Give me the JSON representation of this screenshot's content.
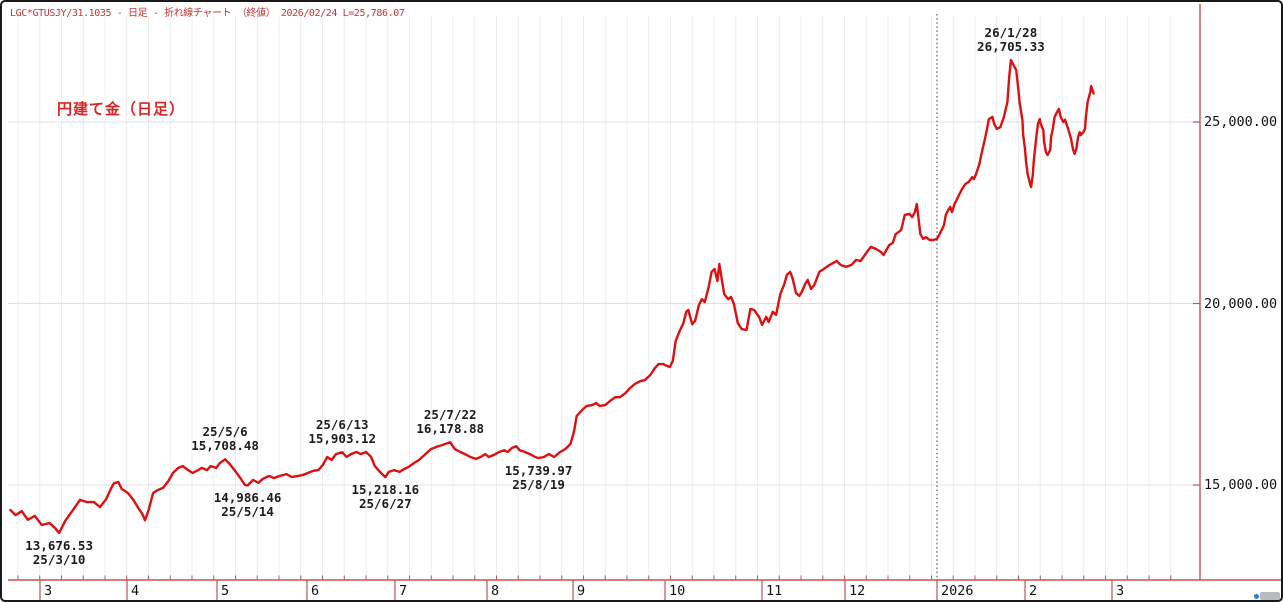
{
  "header": {
    "text": "LGC*GTUSJY/31.1035 - 日足 - 折れ線チャート （終値） 2026/02/24 L=25,786.07"
  },
  "chart_data": {
    "type": "line",
    "title": "円建て金（日足）",
    "instrument": "LGC*GTUSJY/31.1035",
    "period": "日足",
    "chart_style": "折れ線チャート（終値）",
    "last_date": "2026/02/24",
    "last_value": 25786.07,
    "line_color": "#dc1010",
    "axis_color": "#c05353",
    "grid_on": true,
    "x_axis": {
      "tick_labels": [
        "3",
        "4",
        "5",
        "6",
        "7",
        "8",
        "9",
        "10",
        "11",
        "12",
        "2026",
        "2",
        "3"
      ],
      "range_note": "2025/03 - 2026/03 (daily)"
    },
    "y_axis": {
      "tick_values": [
        25000,
        20000,
        15000
      ],
      "tick_labels": [
        "25,000.00",
        "20,000.00",
        "15,000.00"
      ],
      "approx_range": [
        13300,
        27200
      ]
    },
    "t_scale_note": "t = month coordinate: 3..12 = Mar-Dec 2025, 13 = Jan 2026, 14 = Feb 2026, 15 = Mar 2026; fraction = position within month",
    "vline": {
      "t": 13.0,
      "meaning": "year boundary 2026"
    },
    "annotations": [
      {
        "line1": "26/1/28",
        "line2": "26,705.33",
        "t": 13.84,
        "v": 26705.33,
        "side": "above"
      },
      {
        "line1": "25/5/6",
        "line2": "15,708.48",
        "t": 5.09,
        "v": 15708.48,
        "side": "above"
      },
      {
        "line1": "14,986.46",
        "line2": "25/5/14",
        "t": 5.34,
        "v": 14986.46,
        "side": "below"
      },
      {
        "line1": "25/6/13",
        "line2": "15,903.12",
        "t": 6.4,
        "v": 15903.12,
        "side": "above"
      },
      {
        "line1": "15,218.16",
        "line2": "25/6/27",
        "t": 6.89,
        "v": 15218.16,
        "side": "below"
      },
      {
        "line1": "25/7/22",
        "line2": "16,178.88",
        "t": 7.6,
        "v": 16178.88,
        "side": "above"
      },
      {
        "line1": "15,739.97",
        "line2": "25/8/19",
        "t": 8.6,
        "v": 15739.97,
        "side": "below"
      },
      {
        "line1": "13,676.53",
        "line2": "25/3/10",
        "t": 3.22,
        "v": 13676.53,
        "side": "below"
      }
    ],
    "series": [
      {
        "name": "終値",
        "points": [
          [
            2.66,
            14310
          ],
          [
            2.72,
            14170
          ],
          [
            2.79,
            14280
          ],
          [
            2.86,
            14040
          ],
          [
            2.94,
            14150
          ],
          [
            3.02,
            13900
          ],
          [
            3.11,
            13950
          ],
          [
            3.17,
            13820
          ],
          [
            3.22,
            13676.53
          ],
          [
            3.29,
            14010
          ],
          [
            3.37,
            14280
          ],
          [
            3.46,
            14590
          ],
          [
            3.54,
            14530
          ],
          [
            3.62,
            14530
          ],
          [
            3.69,
            14390
          ],
          [
            3.76,
            14610
          ],
          [
            3.82,
            14920
          ],
          [
            3.85,
            15050
          ],
          [
            3.9,
            15080
          ],
          [
            3.94,
            14890
          ],
          [
            4.01,
            14780
          ],
          [
            4.07,
            14590
          ],
          [
            4.12,
            14390
          ],
          [
            4.17,
            14200
          ],
          [
            4.2,
            14030
          ],
          [
            4.24,
            14310
          ],
          [
            4.29,
            14780
          ],
          [
            4.34,
            14860
          ],
          [
            4.4,
            14920
          ],
          [
            4.46,
            15110
          ],
          [
            4.51,
            15330
          ],
          [
            4.57,
            15470
          ],
          [
            4.62,
            15520
          ],
          [
            4.68,
            15410
          ],
          [
            4.73,
            15330
          ],
          [
            4.79,
            15410
          ],
          [
            4.83,
            15470
          ],
          [
            4.89,
            15410
          ],
          [
            4.93,
            15520
          ],
          [
            4.99,
            15470
          ],
          [
            5.03,
            15600
          ],
          [
            5.09,
            15708.48
          ],
          [
            5.14,
            15580
          ],
          [
            5.2,
            15390
          ],
          [
            5.26,
            15190
          ],
          [
            5.31,
            15000
          ],
          [
            5.34,
            14986.46
          ],
          [
            5.4,
            15140
          ],
          [
            5.46,
            15060
          ],
          [
            5.51,
            15170
          ],
          [
            5.58,
            15250
          ],
          [
            5.63,
            15190
          ],
          [
            5.7,
            15250
          ],
          [
            5.77,
            15300
          ],
          [
            5.83,
            15220
          ],
          [
            5.9,
            15250
          ],
          [
            5.96,
            15280
          ],
          [
            6.01,
            15330
          ],
          [
            6.07,
            15390
          ],
          [
            6.13,
            15410
          ],
          [
            6.18,
            15550
          ],
          [
            6.23,
            15770
          ],
          [
            6.28,
            15690
          ],
          [
            6.33,
            15850
          ],
          [
            6.4,
            15903.12
          ],
          [
            6.45,
            15770
          ],
          [
            6.5,
            15850
          ],
          [
            6.56,
            15910
          ],
          [
            6.61,
            15850
          ],
          [
            6.67,
            15910
          ],
          [
            6.73,
            15770
          ],
          [
            6.77,
            15520
          ],
          [
            6.83,
            15360
          ],
          [
            6.89,
            15218.16
          ],
          [
            6.93,
            15360
          ],
          [
            6.99,
            15410
          ],
          [
            7.05,
            15360
          ],
          [
            7.1,
            15440
          ],
          [
            7.15,
            15500
          ],
          [
            7.21,
            15610
          ],
          [
            7.26,
            15690
          ],
          [
            7.33,
            15850
          ],
          [
            7.39,
            15990
          ],
          [
            7.45,
            16050
          ],
          [
            7.51,
            16100
          ],
          [
            7.6,
            16178.88
          ],
          [
            7.65,
            15990
          ],
          [
            7.71,
            15910
          ],
          [
            7.76,
            15850
          ],
          [
            7.82,
            15770
          ],
          [
            7.88,
            15720
          ],
          [
            7.93,
            15770
          ],
          [
            7.98,
            15850
          ],
          [
            8.02,
            15770
          ],
          [
            8.08,
            15830
          ],
          [
            8.14,
            15910
          ],
          [
            8.2,
            15960
          ],
          [
            8.24,
            15910
          ],
          [
            8.29,
            16020
          ],
          [
            8.34,
            16070
          ],
          [
            8.38,
            15960
          ],
          [
            8.44,
            15910
          ],
          [
            8.5,
            15850
          ],
          [
            8.56,
            15770
          ],
          [
            8.6,
            15739.97
          ],
          [
            8.66,
            15770
          ],
          [
            8.72,
            15850
          ],
          [
            8.78,
            15770
          ],
          [
            8.85,
            15910
          ],
          [
            8.91,
            15990
          ],
          [
            8.97,
            16130
          ],
          [
            9.01,
            16460
          ],
          [
            9.04,
            16900
          ],
          [
            9.1,
            17070
          ],
          [
            9.15,
            17180
          ],
          [
            9.21,
            17200
          ],
          [
            9.25,
            17260
          ],
          [
            9.29,
            17180
          ],
          [
            9.35,
            17200
          ],
          [
            9.4,
            17310
          ],
          [
            9.46,
            17420
          ],
          [
            9.51,
            17420
          ],
          [
            9.57,
            17530
          ],
          [
            9.62,
            17670
          ],
          [
            9.67,
            17780
          ],
          [
            9.73,
            17860
          ],
          [
            9.78,
            17890
          ],
          [
            9.84,
            18030
          ],
          [
            9.89,
            18220
          ],
          [
            9.93,
            18330
          ],
          [
            9.98,
            18330
          ],
          [
            10.02,
            18280
          ],
          [
            10.05,
            18250
          ],
          [
            10.08,
            18420
          ],
          [
            10.11,
            18970
          ],
          [
            10.15,
            19240
          ],
          [
            10.19,
            19460
          ],
          [
            10.22,
            19770
          ],
          [
            10.24,
            19820
          ],
          [
            10.28,
            19430
          ],
          [
            10.31,
            19520
          ],
          [
            10.35,
            19960
          ],
          [
            10.38,
            20120
          ],
          [
            10.41,
            20040
          ],
          [
            10.45,
            20450
          ],
          [
            10.48,
            20870
          ],
          [
            10.51,
            20950
          ],
          [
            10.54,
            20620
          ],
          [
            10.56,
            21090
          ],
          [
            10.61,
            20260
          ],
          [
            10.65,
            20120
          ],
          [
            10.68,
            20180
          ],
          [
            10.71,
            19990
          ],
          [
            10.75,
            19460
          ],
          [
            10.79,
            19300
          ],
          [
            10.84,
            19270
          ],
          [
            10.88,
            19850
          ],
          [
            10.92,
            19820
          ],
          [
            10.97,
            19630
          ],
          [
            11.0,
            19410
          ],
          [
            11.05,
            19630
          ],
          [
            11.08,
            19490
          ],
          [
            11.13,
            19770
          ],
          [
            11.17,
            19690
          ],
          [
            11.22,
            20260
          ],
          [
            11.27,
            20540
          ],
          [
            11.3,
            20790
          ],
          [
            11.34,
            20870
          ],
          [
            11.37,
            20680
          ],
          [
            11.41,
            20290
          ],
          [
            11.45,
            20210
          ],
          [
            11.48,
            20320
          ],
          [
            11.52,
            20540
          ],
          [
            11.55,
            20650
          ],
          [
            11.59,
            20400
          ],
          [
            11.63,
            20510
          ],
          [
            11.69,
            20870
          ],
          [
            11.73,
            20930
          ],
          [
            11.8,
            21040
          ],
          [
            11.86,
            21120
          ],
          [
            11.9,
            21170
          ],
          [
            11.95,
            21060
          ],
          [
            12.01,
            21010
          ],
          [
            12.07,
            21060
          ],
          [
            12.12,
            21200
          ],
          [
            12.17,
            21170
          ],
          [
            12.23,
            21390
          ],
          [
            12.28,
            21560
          ],
          [
            12.34,
            21500
          ],
          [
            12.39,
            21420
          ],
          [
            12.42,
            21340
          ],
          [
            12.48,
            21610
          ],
          [
            12.52,
            21670
          ],
          [
            12.55,
            21910
          ],
          [
            12.61,
            22020
          ],
          [
            12.65,
            22440
          ],
          [
            12.7,
            22470
          ],
          [
            12.73,
            22380
          ],
          [
            12.76,
            22520
          ],
          [
            12.78,
            22740
          ],
          [
            12.82,
            21910
          ],
          [
            12.85,
            21780
          ],
          [
            12.88,
            21830
          ],
          [
            12.92,
            21750
          ],
          [
            12.96,
            21750
          ],
          [
            13.0,
            21780
          ],
          [
            13.03,
            21910
          ],
          [
            13.08,
            22160
          ],
          [
            13.1,
            22440
          ],
          [
            13.13,
            22580
          ],
          [
            13.15,
            22660
          ],
          [
            13.17,
            22520
          ],
          [
            13.2,
            22740
          ],
          [
            13.25,
            22990
          ],
          [
            13.28,
            23130
          ],
          [
            13.32,
            23290
          ],
          [
            13.36,
            23350
          ],
          [
            13.4,
            23480
          ],
          [
            13.42,
            23430
          ],
          [
            13.44,
            23540
          ],
          [
            13.48,
            23820
          ],
          [
            13.51,
            24170
          ],
          [
            13.55,
            24590
          ],
          [
            13.59,
            25080
          ],
          [
            13.63,
            25140
          ],
          [
            13.65,
            24950
          ],
          [
            13.68,
            24810
          ],
          [
            13.72,
            24860
          ],
          [
            13.76,
            25140
          ],
          [
            13.8,
            25550
          ],
          [
            13.82,
            26240
          ],
          [
            13.84,
            26705.33
          ],
          [
            13.88,
            26520
          ],
          [
            13.9,
            26430
          ],
          [
            13.92,
            25990
          ],
          [
            13.94,
            25520
          ],
          [
            13.97,
            25060
          ],
          [
            13.98,
            24640
          ],
          [
            14.0,
            24260
          ],
          [
            14.01,
            23950
          ],
          [
            14.03,
            23570
          ],
          [
            14.06,
            23290
          ],
          [
            14.07,
            23210
          ],
          [
            14.09,
            23540
          ],
          [
            14.1,
            23900
          ],
          [
            14.13,
            24590
          ],
          [
            14.15,
            24950
          ],
          [
            14.17,
            25080
          ],
          [
            14.18,
            24950
          ],
          [
            14.21,
            24780
          ],
          [
            14.22,
            24450
          ],
          [
            14.24,
            24170
          ],
          [
            14.26,
            24090
          ],
          [
            14.29,
            24230
          ],
          [
            14.3,
            24590
          ],
          [
            14.32,
            24810
          ],
          [
            14.34,
            25140
          ],
          [
            14.37,
            25280
          ],
          [
            14.39,
            25360
          ],
          [
            14.41,
            25140
          ],
          [
            14.44,
            25000
          ],
          [
            14.46,
            25060
          ],
          [
            14.49,
            24860
          ],
          [
            14.53,
            24530
          ],
          [
            14.55,
            24260
          ],
          [
            14.57,
            24120
          ],
          [
            14.59,
            24260
          ],
          [
            14.61,
            24590
          ],
          [
            14.63,
            24720
          ],
          [
            14.64,
            24640
          ],
          [
            14.67,
            24720
          ],
          [
            14.69,
            24810
          ],
          [
            14.7,
            25140
          ],
          [
            14.72,
            25550
          ],
          [
            14.75,
            25830
          ],
          [
            14.76,
            25990
          ],
          [
            14.79,
            25786.07
          ]
        ]
      }
    ]
  }
}
